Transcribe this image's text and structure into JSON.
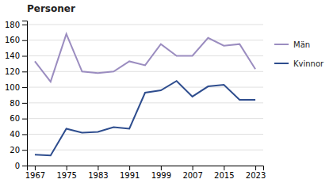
{
  "chart_data": {
    "type": "line",
    "title": "Personer",
    "x": [
      1967,
      1971,
      1975,
      1979,
      1983,
      1987,
      1991,
      1995,
      1999,
      2003,
      2007,
      2011,
      2015,
      2019,
      2023
    ],
    "series": [
      {
        "name": "Män",
        "color": "#9b8dc0",
        "values": [
          133,
          107,
          168,
          120,
          118,
          120,
          133,
          128,
          155,
          140,
          140,
          163,
          153,
          155,
          123
        ]
      },
      {
        "name": "Kvinnor",
        "color": "#2e4d8e",
        "values": [
          14,
          13,
          47,
          42,
          43,
          49,
          47,
          93,
          96,
          108,
          88,
          101,
          103,
          84,
          84
        ]
      }
    ],
    "xlim": [
      1965,
      2025
    ],
    "ylim": [
      0,
      185
    ],
    "xticks": [
      1967,
      1975,
      1983,
      1991,
      1999,
      2007,
      2015,
      2023
    ],
    "yticks": [
      0,
      20,
      40,
      60,
      80,
      100,
      120,
      140,
      160,
      180
    ],
    "grid": true,
    "legend": "right"
  }
}
